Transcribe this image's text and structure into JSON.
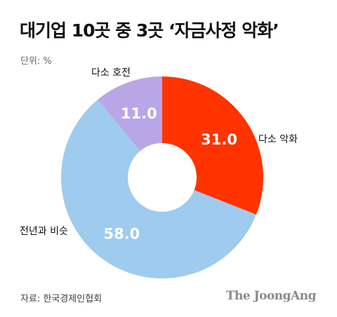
{
  "title": "대기업 10곳 중 3곳 ‘자금사정 악화’",
  "unit_label": "단위: %",
  "source": "자료: 한국경제인협회",
  "brand": "The JoongAng",
  "chart_data": {
    "type": "pie",
    "donut": true,
    "unit": "%",
    "slices": [
      {
        "label": "다소 악화",
        "value": 31.0,
        "value_label": "31.0",
        "color": "#ff3300"
      },
      {
        "label": "전년과 비슷",
        "value": 58.0,
        "value_label": "58.0",
        "color": "#9ecbee"
      },
      {
        "label": "다소 호전",
        "value": 11.0,
        "value_label": "11.0",
        "color": "#b9a6e6"
      }
    ]
  }
}
